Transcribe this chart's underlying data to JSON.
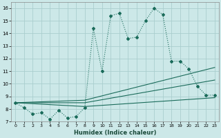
{
  "xlabel": "Humidex (Indice chaleur)",
  "bg_color": "#cce8e8",
  "grid_color": "#aacece",
  "line_color": "#1a6b5a",
  "xlim": [
    -0.5,
    23.5
  ],
  "ylim": [
    7.0,
    16.5
  ],
  "xticks": [
    0,
    1,
    2,
    3,
    4,
    5,
    6,
    7,
    8,
    9,
    10,
    11,
    12,
    13,
    14,
    15,
    16,
    17,
    18,
    19,
    20,
    21,
    22,
    23
  ],
  "yticks": [
    7,
    8,
    9,
    10,
    11,
    12,
    13,
    14,
    15,
    16
  ],
  "series1_x": [
    0,
    1,
    2,
    3,
    4,
    5,
    6,
    7,
    8,
    9,
    10,
    11,
    12,
    13,
    14,
    15,
    16,
    17,
    18,
    19,
    20,
    21,
    22,
    23
  ],
  "series1_y": [
    8.5,
    8.1,
    7.6,
    7.7,
    7.2,
    7.9,
    7.3,
    7.4,
    8.1,
    14.4,
    11.0,
    15.4,
    15.6,
    13.6,
    13.7,
    15.0,
    16.0,
    15.5,
    11.8,
    11.8,
    11.2,
    9.8,
    9.1,
    9.1
  ],
  "series2_x": [
    0,
    8,
    23
  ],
  "series2_y": [
    8.5,
    8.2,
    8.9
  ],
  "series3_x": [
    0,
    8,
    23
  ],
  "series3_y": [
    8.5,
    8.5,
    10.3
  ],
  "series4_x": [
    0,
    8,
    23
  ],
  "series4_y": [
    8.5,
    8.7,
    11.3
  ]
}
